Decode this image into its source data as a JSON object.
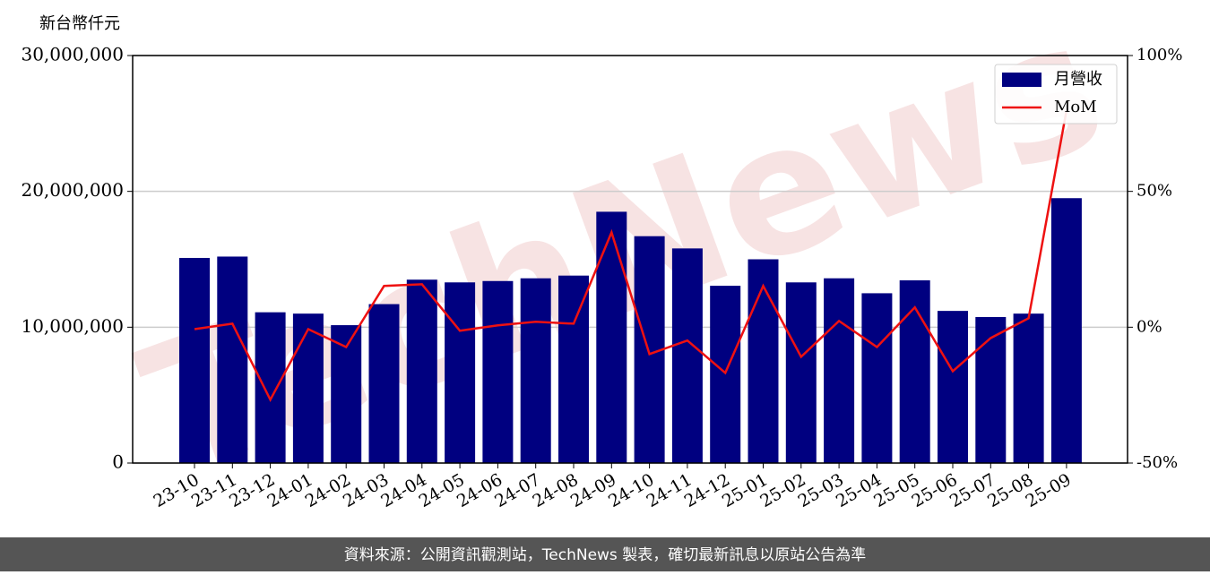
{
  "chart_data": {
    "type": "bar_line",
    "y_axis_label": "新台幣仟元",
    "watermark": "TechNews",
    "footer": "資料來源：公開資訊觀測站，TechNews 製表，確切最新訊息以原站公告為準",
    "categories": [
      "23-10",
      "23-11",
      "23-12",
      "24-01",
      "24-02",
      "24-03",
      "24-04",
      "24-05",
      "24-06",
      "24-07",
      "24-08",
      "24-09",
      "24-10",
      "24-11",
      "24-12",
      "25-01",
      "25-02",
      "25-03",
      "25-04",
      "25-05",
      "25-06",
      "25-07",
      "25-08",
      "25-09"
    ],
    "series": [
      {
        "name": "月營收",
        "color": "#000080",
        "type": "bar",
        "values": [
          15100000,
          15200000,
          11100000,
          11000000,
          10150000,
          11700000,
          13500000,
          13300000,
          13400000,
          13600000,
          13800000,
          18500000,
          16700000,
          15800000,
          13050000,
          15000000,
          13300000,
          13600000,
          12500000,
          13450000,
          11200000,
          10750000,
          11000000,
          19500000
        ]
      },
      {
        "name": "MoM",
        "color": "#ee1111",
        "type": "line",
        "axis": "y2",
        "values": [
          -0.7,
          1.3,
          -26.7,
          -0.7,
          -7.3,
          15.2,
          15.8,
          -1.3,
          0.7,
          2.0,
          1.3,
          34.9,
          -9.9,
          -4.9,
          -16.8,
          15.2,
          -10.9,
          2.3,
          -7.3,
          7.3,
          -16.2,
          -4.0,
          3.3,
          79.8
        ]
      }
    ],
    "ylim": [
      0,
      30000000
    ],
    "yticks": [
      0,
      {
        "value": 10000000,
        "label": "10,000,000"
      },
      {
        "value": 20000000,
        "label": "20,000,000"
      },
      {
        "value": 30000000,
        "label": "30,000,000"
      }
    ],
    "y2lim": [
      -50,
      100
    ],
    "y2ticks": [
      {
        "value": -50,
        "label": "-50%"
      },
      {
        "value": 0,
        "label": "0%"
      },
      {
        "value": 50,
        "label": "50%"
      },
      {
        "value": 100,
        "label": "100%"
      }
    ],
    "grid": true,
    "legend": "upper right"
  }
}
